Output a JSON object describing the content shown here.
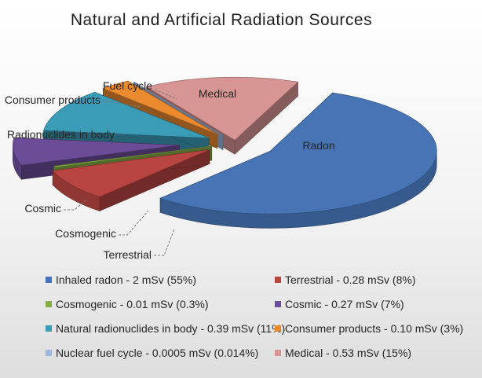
{
  "chart_data": {
    "type": "pie",
    "title": "Natural and Artificial Radiation Sources",
    "legend_position": "bottom",
    "slices": [
      {
        "key": "radon",
        "label": "Radon",
        "legend": "Inhaled radon - 2 mSv (55%)",
        "value": 55,
        "color": "#4674b4"
      },
      {
        "key": "terrestrial",
        "label": "Terrestrial",
        "legend": "Terrestrial - 0.28 mSv (8%)",
        "value": 8,
        "color": "#b94542"
      },
      {
        "key": "cosmogenic",
        "label": "Cosmogenic",
        "legend": "Cosmogenic - 0.01 mSv (0.3%)",
        "value": 0.3,
        "color": "#86ad43"
      },
      {
        "key": "cosmic",
        "label": "Cosmic",
        "legend": "Cosmic - 0.27 mSv (7%)",
        "value": 7,
        "color": "#6b4c96"
      },
      {
        "key": "body",
        "label": "Radionuclides in body",
        "legend": "Natural radionuclides in body - 0.39 mSv (11%)",
        "value": 11,
        "color": "#3b9cb8"
      },
      {
        "key": "consumer",
        "label": "Consumer products",
        "legend": "Consumer products - 0.10 mSv (3%)",
        "value": 3,
        "color": "#ec8a30"
      },
      {
        "key": "fuel",
        "label": "Fuel cycle",
        "legend": "Nuclear fuel cycle - 0.0005 mSv (0.014%)",
        "value": 0.014,
        "color": "#9db7df"
      },
      {
        "key": "medical",
        "label": "Medical",
        "legend": "Medical - 0.53 mSv (15%)",
        "value": 15,
        "color": "#d79593"
      }
    ]
  }
}
